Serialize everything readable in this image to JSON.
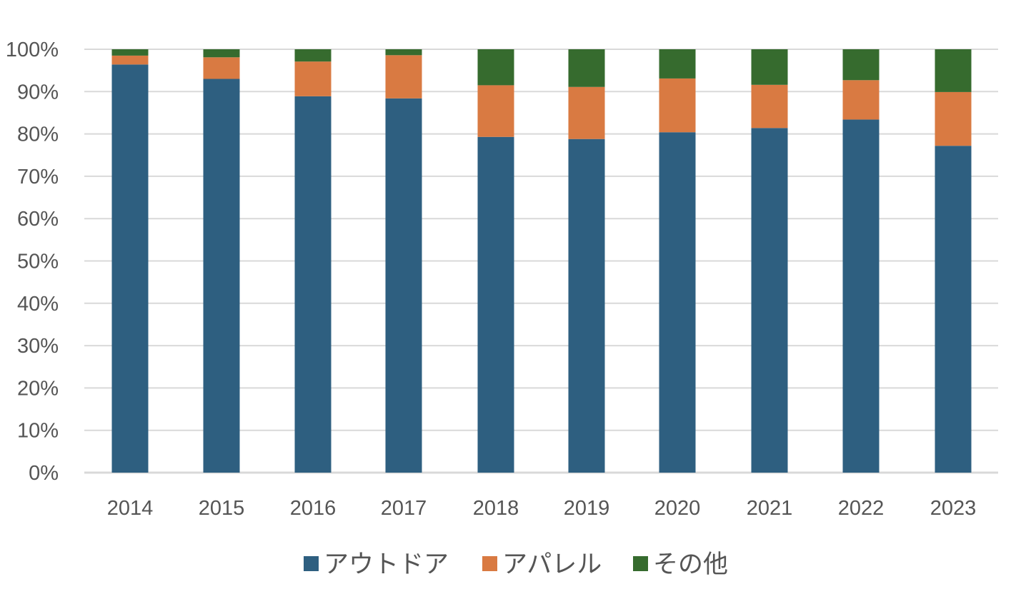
{
  "chart_data": {
    "type": "bar",
    "stacked": true,
    "categories": [
      "2014",
      "2015",
      "2016",
      "2017",
      "2018",
      "2019",
      "2020",
      "2021",
      "2022",
      "2023"
    ],
    "series": [
      {
        "name": "アウトドア",
        "color": "#2e5f80",
        "values": [
          96.4,
          93.0,
          88.9,
          88.4,
          79.3,
          78.8,
          80.4,
          81.4,
          83.4,
          77.2
        ]
      },
      {
        "name": "アパレル",
        "color": "#d97a42",
        "values": [
          2.1,
          5.1,
          8.2,
          10.2,
          12.2,
          12.3,
          12.7,
          10.2,
          9.3,
          12.7
        ]
      },
      {
        "name": "その他",
        "color": "#366b2e",
        "values": [
          1.5,
          1.9,
          2.9,
          1.4,
          8.5,
          8.9,
          6.9,
          8.4,
          7.3,
          10.1
        ]
      }
    ],
    "y_ticks": [
      "0%",
      "10%",
      "20%",
      "30%",
      "40%",
      "50%",
      "60%",
      "70%",
      "80%",
      "90%",
      "100%"
    ],
    "ylim": [
      0,
      100
    ],
    "grid": true,
    "legend_position": "bottom"
  }
}
